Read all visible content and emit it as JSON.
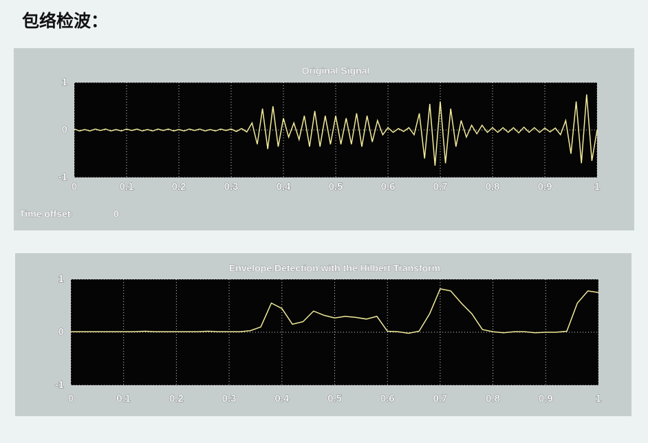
{
  "header": {
    "title": "包络检波："
  },
  "chart_data": [
    {
      "type": "line",
      "title": "Original Signal",
      "annotations": [
        "Time offset:",
        "0"
      ],
      "xlim": [
        0,
        1
      ],
      "ylim": [
        -1,
        1
      ],
      "xticks": [
        0,
        0.1,
        0.2,
        0.3,
        0.4,
        0.5,
        0.6,
        0.7,
        0.8,
        0.9,
        1
      ],
      "yticks": [
        -1,
        0,
        1
      ],
      "grid": true,
      "series": [
        {
          "color": "#f3eb9a",
          "x": [
            0,
            0.01,
            0.02,
            0.03,
            0.04,
            0.05,
            0.06,
            0.07,
            0.08,
            0.09,
            0.1,
            0.11,
            0.12,
            0.13,
            0.14,
            0.15,
            0.16,
            0.17,
            0.18,
            0.19,
            0.2,
            0.21,
            0.22,
            0.23,
            0.24,
            0.25,
            0.26,
            0.27,
            0.28,
            0.29,
            0.3,
            0.31,
            0.32,
            0.33,
            0.34,
            0.35,
            0.36,
            0.37,
            0.38,
            0.39,
            0.4,
            0.41,
            0.42,
            0.43,
            0.44,
            0.45,
            0.46,
            0.47,
            0.48,
            0.49,
            0.5,
            0.51,
            0.52,
            0.53,
            0.54,
            0.55,
            0.56,
            0.57,
            0.58,
            0.59,
            0.6,
            0.61,
            0.62,
            0.63,
            0.64,
            0.65,
            0.66,
            0.67,
            0.68,
            0.69,
            0.7,
            0.71,
            0.72,
            0.73,
            0.74,
            0.75,
            0.76,
            0.77,
            0.78,
            0.79,
            0.8,
            0.81,
            0.82,
            0.83,
            0.84,
            0.85,
            0.86,
            0.87,
            0.88,
            0.89,
            0.9,
            0.91,
            0.92,
            0.93,
            0.94,
            0.95,
            0.96,
            0.97,
            0.98,
            0.99,
            1
          ],
          "values": [
            0.02,
            -0.02,
            0.01,
            -0.02,
            0.02,
            -0.01,
            0.02,
            -0.02,
            0.01,
            -0.02,
            0.02,
            -0.01,
            0.02,
            -0.02,
            0.01,
            -0.02,
            0.02,
            -0.01,
            0.02,
            -0.02,
            0.01,
            -0.02,
            0.02,
            -0.01,
            0.02,
            -0.02,
            0.01,
            -0.02,
            0.02,
            -0.01,
            0.02,
            -0.03,
            0.03,
            -0.04,
            0.15,
            -0.3,
            0.45,
            -0.4,
            0.5,
            -0.35,
            0.25,
            -0.15,
            0.15,
            -0.2,
            0.3,
            -0.35,
            0.4,
            -0.35,
            0.3,
            -0.3,
            0.3,
            -0.3,
            0.25,
            -0.3,
            0.35,
            -0.35,
            0.3,
            -0.25,
            0.2,
            -0.1,
            0.05,
            -0.05,
            0.03,
            -0.03,
            0.05,
            -0.1,
            0.35,
            -0.6,
            0.55,
            -0.75,
            0.6,
            -0.7,
            0.45,
            -0.35,
            0.2,
            -0.15,
            0.1,
            -0.08,
            0.1,
            -0.05,
            0.05,
            -0.05,
            0.05,
            -0.05,
            0.05,
            -0.06,
            0.06,
            -0.05,
            0.05,
            -0.05,
            0.04,
            -0.04,
            0.04,
            -0.1,
            0.2,
            -0.5,
            0.6,
            -0.7,
            0.75,
            -0.65,
            0
          ]
        }
      ]
    },
    {
      "type": "line",
      "title": "Envelope Detection with the Hilbert Transform",
      "xlim": [
        0,
        1
      ],
      "ylim": [
        -1,
        1
      ],
      "xticks": [
        0,
        0.1,
        0.2,
        0.3,
        0.4,
        0.5,
        0.6,
        0.7,
        0.8,
        0.9,
        1
      ],
      "yticks": [
        -1,
        0,
        1
      ],
      "grid": true,
      "series": [
        {
          "color": "#f3eb9a",
          "x": [
            0,
            0.02,
            0.04,
            0.06,
            0.08,
            0.1,
            0.12,
            0.14,
            0.16,
            0.18,
            0.2,
            0.22,
            0.24,
            0.26,
            0.28,
            0.3,
            0.32,
            0.34,
            0.36,
            0.38,
            0.4,
            0.42,
            0.44,
            0.46,
            0.48,
            0.5,
            0.52,
            0.54,
            0.56,
            0.58,
            0.6,
            0.62,
            0.64,
            0.66,
            0.68,
            0.7,
            0.72,
            0.74,
            0.76,
            0.78,
            0.8,
            0.82,
            0.84,
            0.86,
            0.88,
            0.9,
            0.92,
            0.94,
            0.96,
            0.98,
            1
          ],
          "values": [
            0.01,
            0.01,
            0.01,
            0.01,
            0.01,
            0.01,
            0.01,
            0.02,
            0.01,
            0.01,
            0.01,
            0.01,
            0.01,
            0.02,
            0.01,
            0.01,
            0.01,
            0.03,
            0.1,
            0.55,
            0.45,
            0.15,
            0.2,
            0.4,
            0.32,
            0.27,
            0.3,
            0.28,
            0.25,
            0.3,
            0.02,
            0.01,
            -0.02,
            0.02,
            0.35,
            0.82,
            0.78,
            0.55,
            0.35,
            0.05,
            0.01,
            -0.01,
            0.01,
            0.01,
            -0.01,
            0,
            0,
            0.02,
            0.55,
            0.78,
            0.75
          ]
        }
      ]
    }
  ]
}
